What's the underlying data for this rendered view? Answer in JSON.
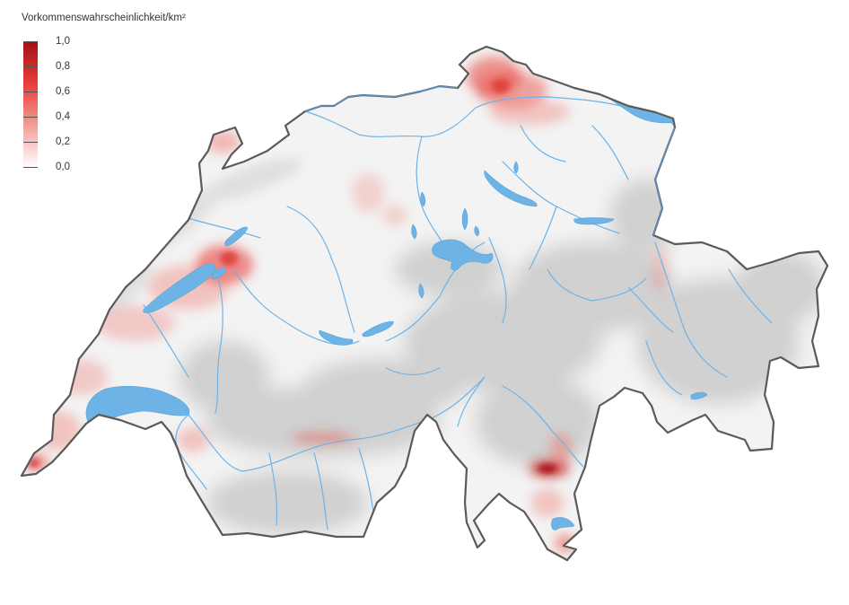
{
  "legend": {
    "title": "Vorkommenswahrscheinlichkeit/km²",
    "ticks": [
      "1,0",
      "0,8",
      "0,6",
      "0,4",
      "0,2",
      "0,0"
    ],
    "color_high": "#a50f15",
    "color_low": "#ffffff"
  },
  "colors": {
    "water": "#6eb3e6",
    "border": "#5a5a5a",
    "terrain": "#f1f1f1",
    "relief": "#b9b9b9",
    "hotspot": "#e8413a"
  }
}
